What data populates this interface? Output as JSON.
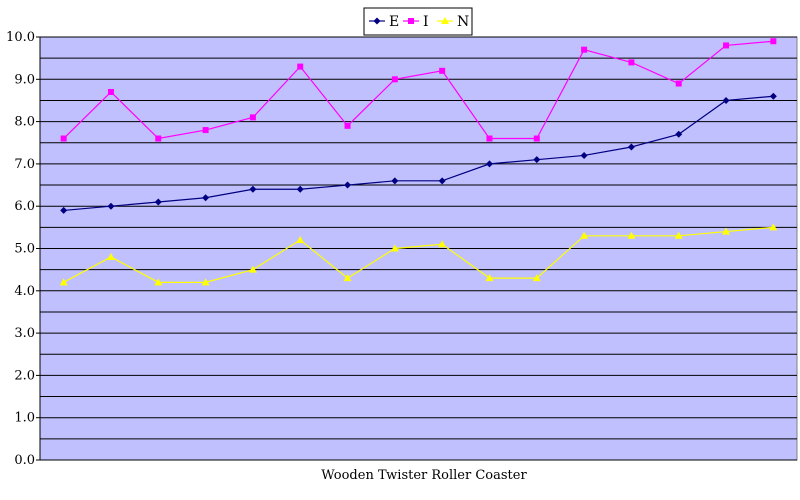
{
  "chart_data": {
    "type": "line",
    "title": "",
    "xlabel": "Wooden Twister Roller Coaster",
    "ylabel": "",
    "ylim": [
      0,
      10
    ],
    "y_ticks": [
      "0.0",
      "1.0",
      "2.0",
      "3.0",
      "4.0",
      "5.0",
      "6.0",
      "7.0",
      "8.0",
      "9.0",
      "10.0"
    ],
    "grid": true,
    "legend_position": "top-center",
    "plot_background": "#C0C0FF",
    "series": [
      {
        "name": "E",
        "color": "#000080",
        "marker": "diamond",
        "values": [
          5.9,
          6.0,
          6.1,
          6.2,
          6.4,
          6.4,
          6.5,
          6.6,
          6.6,
          7.0,
          7.1,
          7.2,
          7.4,
          7.7,
          8.5,
          8.6
        ]
      },
      {
        "name": "I",
        "color": "#FF00FF",
        "marker": "square",
        "values": [
          7.6,
          8.7,
          7.6,
          7.8,
          8.1,
          9.3,
          7.9,
          9.0,
          9.2,
          7.6,
          7.6,
          9.7,
          9.4,
          8.9,
          9.8,
          9.9
        ]
      },
      {
        "name": "N",
        "color": "#FFFF00",
        "marker": "triangle",
        "values": [
          4.2,
          4.8,
          4.2,
          4.2,
          4.5,
          5.2,
          4.3,
          5.0,
          5.1,
          4.3,
          4.3,
          5.3,
          5.3,
          5.3,
          5.4,
          5.5
        ]
      }
    ]
  }
}
